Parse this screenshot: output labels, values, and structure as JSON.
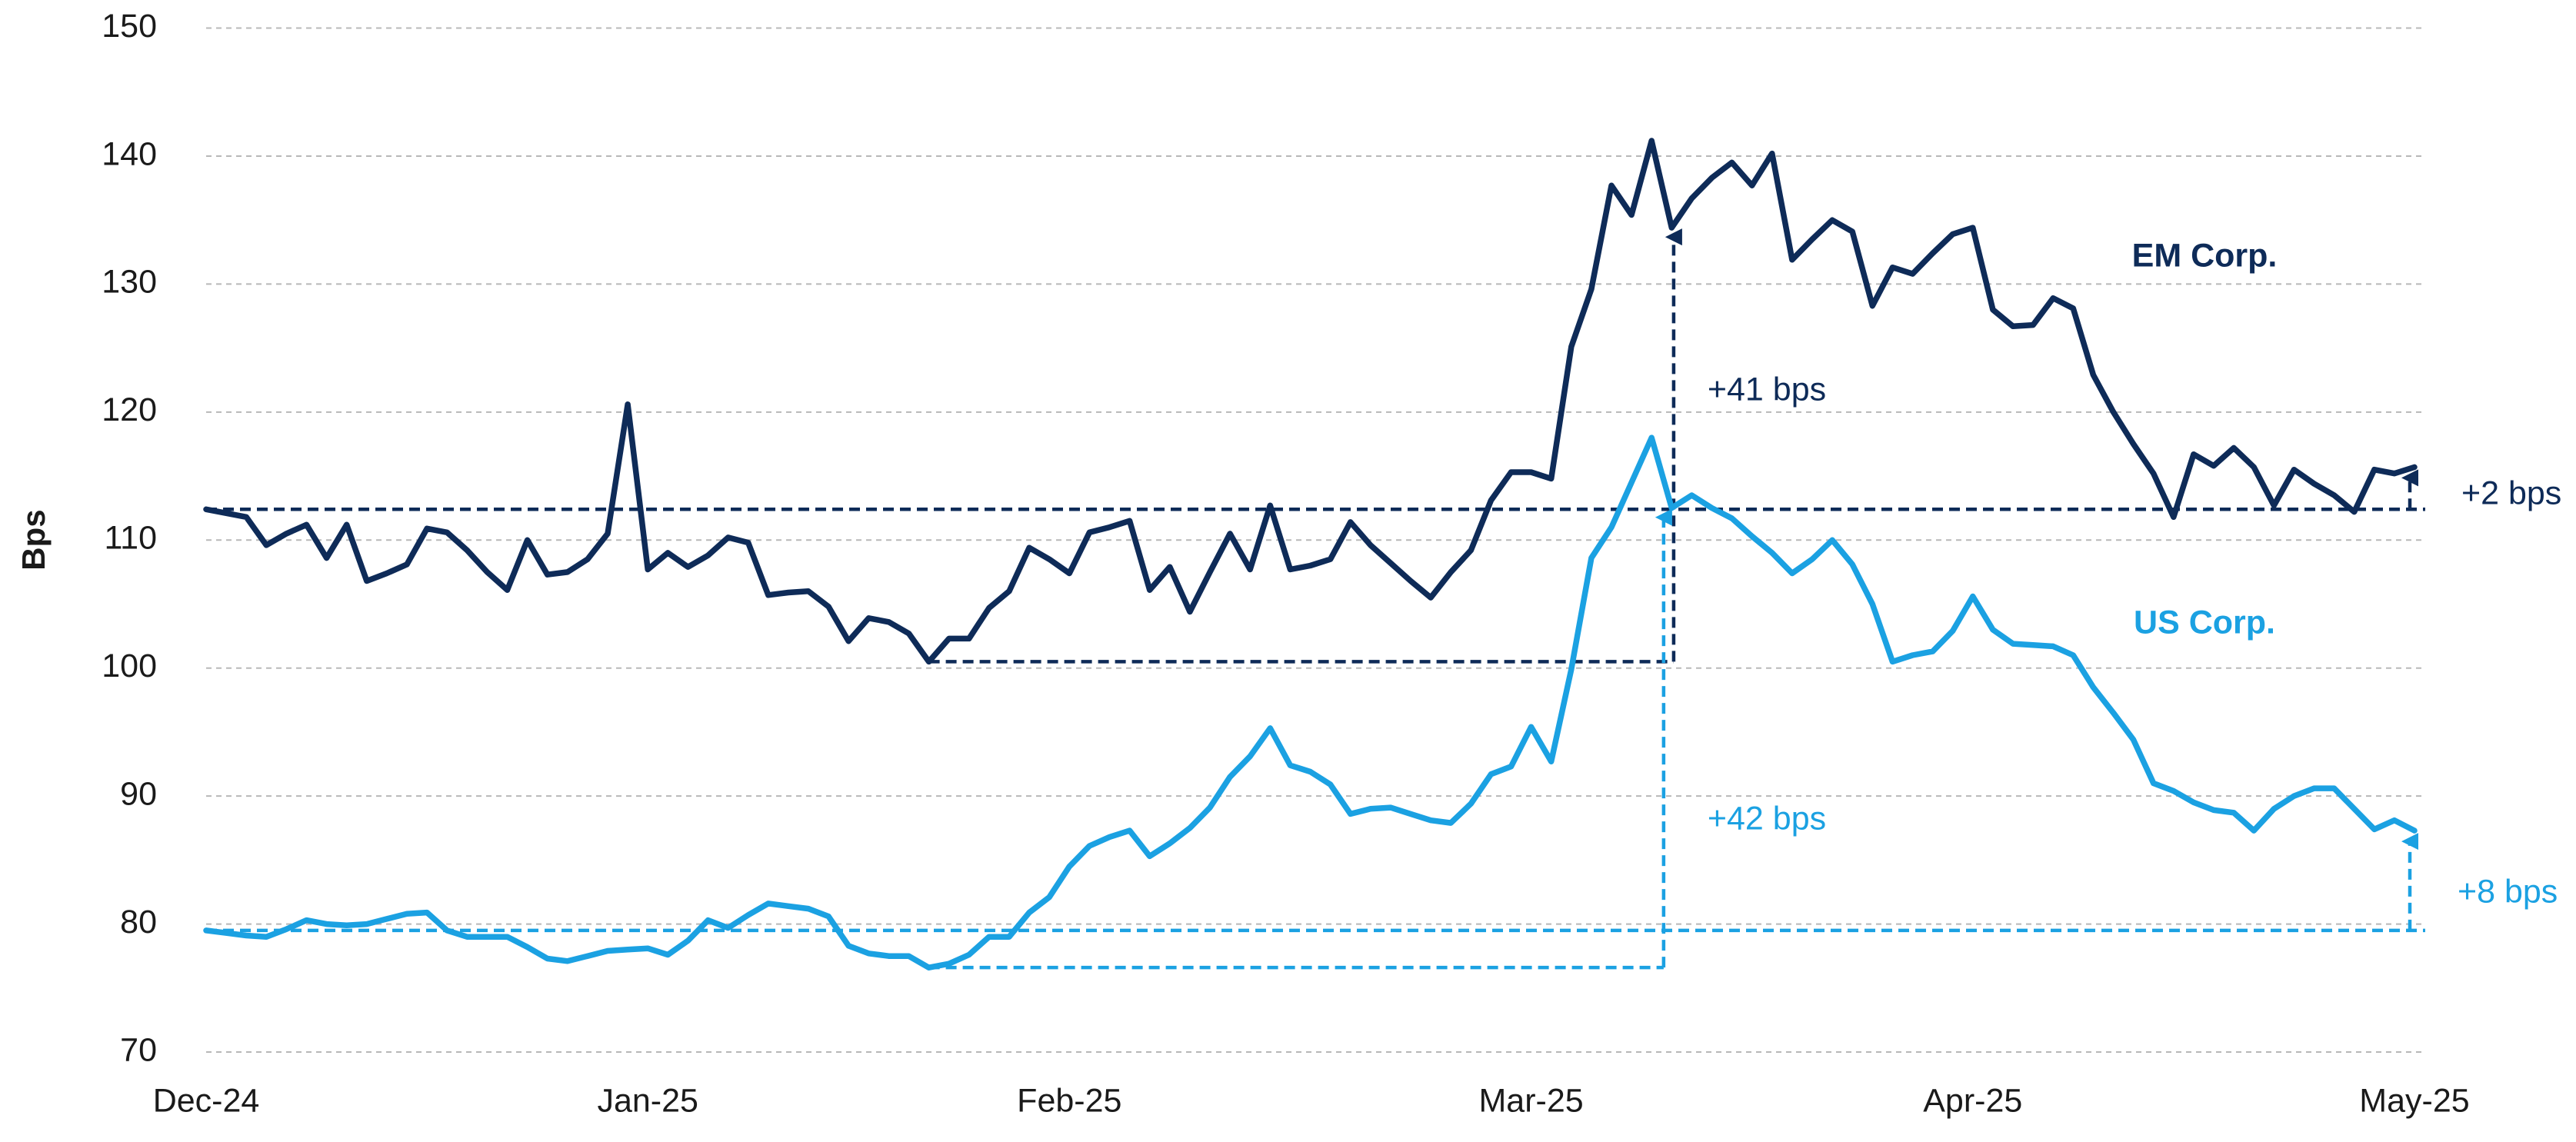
{
  "chart_data": {
    "type": "line",
    "y_label": "Bps",
    "categories": [
      "Dec-24",
      null,
      null,
      null,
      null,
      null,
      null,
      null,
      null,
      null,
      null,
      null,
      null,
      null,
      null,
      null,
      null,
      null,
      null,
      null,
      null,
      null,
      "Jan-25",
      null,
      null,
      null,
      null,
      null,
      null,
      null,
      null,
      null,
      null,
      null,
      null,
      null,
      null,
      null,
      null,
      null,
      null,
      null,
      null,
      "Feb-25",
      null,
      null,
      null,
      null,
      null,
      null,
      null,
      null,
      null,
      null,
      null,
      null,
      null,
      null,
      null,
      null,
      null,
      null,
      null,
      null,
      null,
      null,
      "Mar-25",
      null,
      null,
      null,
      null,
      null,
      null,
      null,
      null,
      null,
      null,
      null,
      null,
      null,
      null,
      null,
      null,
      null,
      null,
      null,
      null,
      null,
      "Apr-25",
      null,
      null,
      null,
      null,
      null,
      null,
      null,
      null,
      null,
      null,
      null,
      null,
      null,
      null,
      null,
      null,
      null,
      null,
      null,
      null,
      null,
      "May-25"
    ],
    "series": [
      {
        "name": "EM Corp.",
        "color": "#0e2b58",
        "values": [
          112.4,
          112.1,
          111.8,
          109.6,
          110.5,
          111.2,
          108.6,
          111.2,
          106.8,
          107.4,
          108.1,
          110.9,
          110.6,
          109.2,
          107.5,
          106.1,
          110.0,
          107.3,
          107.5,
          108.5,
          110.5,
          120.6,
          107.7,
          109.0,
          107.9,
          108.8,
          110.2,
          109.8,
          105.7,
          105.9,
          106.0,
          104.8,
          102.1,
          103.9,
          103.6,
          102.7,
          100.5,
          102.3,
          102.3,
          104.7,
          106.0,
          109.4,
          108.5,
          107.4,
          110.6,
          111.0,
          111.5,
          106.1,
          107.9,
          104.4,
          107.5,
          110.5,
          107.7,
          112.7,
          107.7,
          108.0,
          108.5,
          111.4,
          109.6,
          108.2,
          106.8,
          105.5,
          107.5,
          109.2,
          113.1,
          115.3,
          115.3,
          114.8,
          125.1,
          129.6,
          137.7,
          135.4,
          141.2,
          134.4,
          136.7,
          138.3,
          139.5,
          137.7,
          140.2,
          131.9,
          133.5,
          135.0,
          134.1,
          128.3,
          131.3,
          130.8,
          132.4,
          133.9,
          134.4,
          128.0,
          126.7,
          126.8,
          128.9,
          128.1,
          122.9,
          120.0,
          117.5,
          115.2,
          111.8,
          116.7,
          115.8,
          117.2,
          115.7,
          112.7,
          115.5,
          114.4,
          113.5,
          112.2,
          115.5,
          115.2,
          115.7
        ]
      },
      {
        "name": "US Corp.",
        "color": "#1ba1e2",
        "values": [
          79.5,
          79.3,
          79.1,
          79.0,
          79.6,
          80.3,
          80.0,
          79.9,
          80.0,
          80.4,
          80.8,
          80.9,
          79.5,
          79.0,
          79.0,
          79.0,
          78.2,
          77.3,
          77.1,
          77.5,
          77.9,
          78.0,
          78.1,
          77.6,
          78.7,
          80.3,
          79.7,
          80.7,
          81.6,
          81.4,
          81.2,
          80.6,
          78.3,
          77.7,
          77.5,
          77.5,
          76.6,
          76.9,
          77.6,
          79.0,
          79.0,
          80.9,
          82.1,
          84.5,
          86.1,
          86.8,
          87.3,
          85.3,
          86.3,
          87.5,
          89.1,
          91.5,
          93.1,
          95.3,
          92.4,
          91.9,
          90.9,
          88.6,
          89.0,
          89.1,
          88.6,
          88.1,
          87.9,
          89.4,
          91.7,
          92.3,
          95.4,
          92.7,
          99.9,
          108.6,
          111.0,
          114.5,
          118.0,
          112.5,
          113.5,
          112.5,
          111.7,
          110.3,
          109.0,
          107.4,
          108.5,
          110.0,
          108.1,
          105.0,
          100.5,
          101.0,
          101.3,
          102.9,
          105.6,
          103.0,
          101.9,
          101.8,
          101.7,
          101.0,
          98.5,
          96.5,
          94.4,
          91.0,
          90.4,
          89.5,
          88.9,
          88.7,
          87.3,
          89.0,
          90.0,
          90.6,
          90.6,
          89.0,
          87.4,
          88.1,
          87.3
        ]
      }
    ],
    "annotations": [
      "+41 bps",
      "+42 bps",
      "+2 bps",
      "+8 bps"
    ],
    "ylim": [
      70,
      150
    ],
    "yticks": [
      70,
      80,
      90,
      100,
      110,
      120,
      130,
      140,
      150
    ],
    "grid": true
  }
}
